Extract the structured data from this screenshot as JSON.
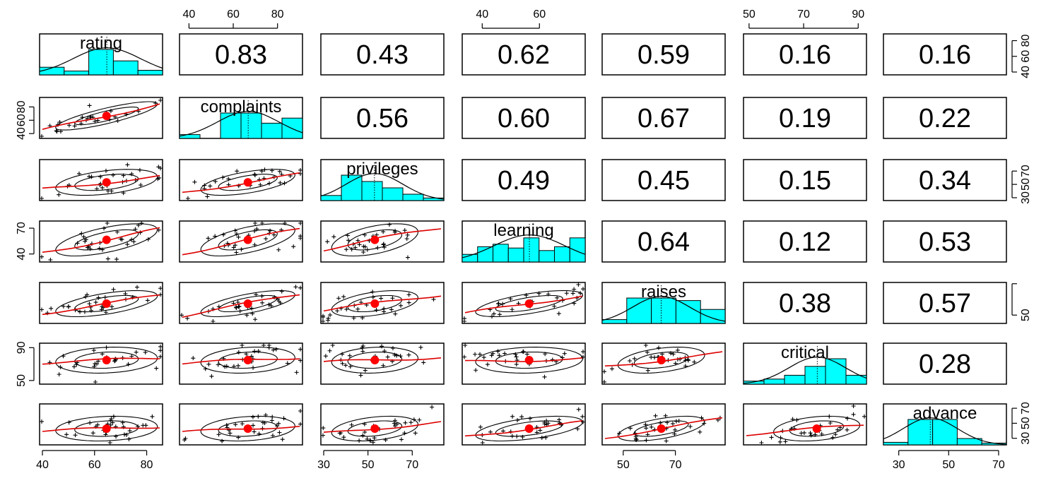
{
  "chart_data": {
    "type": "scatter-matrix",
    "title": "",
    "variables": [
      "rating",
      "complaints",
      "privileges",
      "learning",
      "raises",
      "critical",
      "advance"
    ],
    "correlations": [
      [
        "",
        "0.83",
        "0.43",
        "0.62",
        "0.59",
        "0.16",
        "0.16"
      ],
      [
        "",
        "",
        "0.56",
        "0.60",
        "0.67",
        "0.19",
        "0.22"
      ],
      [
        "",
        "",
        "",
        "0.49",
        "0.45",
        "0.15",
        "0.34"
      ],
      [
        "",
        "",
        "",
        "",
        "0.64",
        "0.12",
        "0.53"
      ],
      [
        "",
        "",
        "",
        "",
        "",
        "0.38",
        "0.57"
      ],
      [
        "",
        "",
        "",
        "",
        "",
        "",
        "0.28"
      ],
      [
        "",
        "",
        "",
        "",
        "",
        "",
        ""
      ]
    ],
    "ranges": [
      [
        40,
        85
      ],
      [
        37,
        90
      ],
      [
        30,
        83
      ],
      [
        34,
        75
      ],
      [
        43,
        88
      ],
      [
        49,
        92
      ],
      [
        25,
        72
      ]
    ],
    "means": [
      64.6,
      66.6,
      53.1,
      56.4,
      64.6,
      74.8,
      42.9
    ],
    "sds": [
      12.2,
      13.3,
      12.2,
      11.7,
      10.4,
      9.9,
      10.3
    ],
    "histograms": [
      [
        0.3,
        0.15,
        1.0,
        0.55,
        0.18
      ],
      [
        0.15,
        0.0,
        1.0,
        1.0,
        0.6,
        0.8
      ],
      [
        0.2,
        1.0,
        0.75,
        0.5,
        0.25,
        0.1
      ],
      [
        0.3,
        0.6,
        0.7,
        0.55,
        0.95,
        0.45,
        0.6,
        0.95
      ],
      [
        0.15,
        1.0,
        1.0,
        0.9,
        0.55
      ],
      [
        0.12,
        0.2,
        0.35,
        0.7,
        1.0,
        0.35
      ],
      [
        0.1,
        1.0,
        1.0,
        0.25,
        0.07
      ]
    ],
    "top_axes": [
      {
        "col": 1,
        "ticks": [
          40,
          60,
          80
        ],
        "labels": [
          "40",
          "60",
          "80"
        ]
      },
      {
        "col": 3,
        "ticks": [
          40,
          60
        ],
        "labels": [
          "40",
          "60"
        ]
      },
      {
        "col": 5,
        "ticks": [
          50,
          70,
          90
        ],
        "labels": [
          "50",
          "70",
          "90"
        ]
      }
    ],
    "bottom_axes": [
      {
        "col": 0,
        "ticks": [
          40,
          60,
          80
        ],
        "labels": [
          "40",
          "60",
          "80"
        ]
      },
      {
        "col": 2,
        "ticks": [
          30,
          50,
          70
        ],
        "labels": [
          "30",
          "50",
          "70"
        ]
      },
      {
        "col": 4,
        "ticks": [
          50,
          70
        ],
        "labels": [
          "50",
          "70"
        ]
      },
      {
        "col": 6,
        "ticks": [
          30,
          50,
          70
        ],
        "labels": [
          "30",
          "50",
          "70"
        ]
      }
    ],
    "left_axes": [
      {
        "row": 1,
        "ticks": [
          40,
          60,
          80
        ],
        "labels": [
          "40",
          "60",
          "80"
        ]
      },
      {
        "row": 3,
        "ticks": [
          40,
          70
        ],
        "labels": [
          "40",
          "70"
        ]
      },
      {
        "row": 5,
        "ticks": [
          50,
          90
        ],
        "labels": [
          "50",
          "90"
        ]
      }
    ],
    "right_axes": [
      {
        "row": 0,
        "ticks": [
          40,
          60,
          80
        ],
        "labels": [
          "40",
          "60",
          "80"
        ]
      },
      {
        "row": 2,
        "ticks": [
          30,
          50,
          70
        ],
        "labels": [
          "30",
          "50",
          "70"
        ]
      },
      {
        "row": 4,
        "ticks": [
          50,
          90
        ],
        "labels": [
          "50",
          ""
        ]
      },
      {
        "row": 6,
        "ticks": [
          30,
          50,
          70
        ],
        "labels": [
          "30",
          "50",
          "70"
        ]
      }
    ],
    "colors": {
      "histogram_fill": "#00ffff",
      "loess_line": "#dd0000",
      "mean_point": "#ff0000",
      "points": "#000000",
      "density": "#000000"
    }
  }
}
